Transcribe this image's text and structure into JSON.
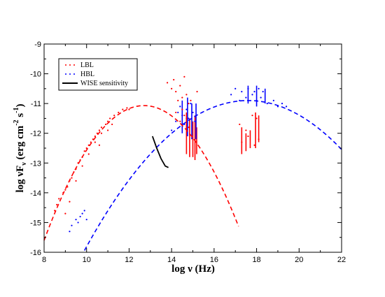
{
  "chart_data": {
    "type": "scatter",
    "xlabel": "log ν (Hz)",
    "ylabel": "log νF_ν (erg cm^-2 s^-1)",
    "xlim": [
      8,
      22
    ],
    "ylim": [
      -16,
      -9
    ],
    "xticks": [
      8,
      10,
      12,
      14,
      16,
      18,
      20,
      22
    ],
    "yticks": [
      -16,
      -15,
      -14,
      -13,
      -12,
      -11,
      -10,
      -9
    ],
    "xtick_labels": [
      "8",
      "10",
      "12",
      "14",
      "16",
      "18",
      "20",
      "22"
    ],
    "ytick_labels": [
      "-16",
      "-15",
      "-14",
      "-13",
      "-12",
      "-11",
      "-10",
      "-9"
    ],
    "grid": false,
    "legend_position": "top-left",
    "legend": [
      {
        "label": "LBL",
        "marker": "dots",
        "color": "#ff0000"
      },
      {
        "label": "HBL",
        "marker": "dots",
        "color": "#0000ff"
      },
      {
        "label": "WISE sensitivity",
        "marker": "line",
        "color": "#000000"
      }
    ],
    "series": [
      {
        "name": "LBL",
        "color": "#ff0000",
        "points": [
          [
            8.5,
            -14.6
          ],
          [
            8.6,
            -14.4
          ],
          [
            8.7,
            -14.2
          ],
          [
            8.9,
            -14.0
          ],
          [
            9.0,
            -13.9
          ],
          [
            9.1,
            -13.8
          ],
          [
            9.2,
            -13.6
          ],
          [
            9.3,
            -13.5
          ],
          [
            9.4,
            -13.3
          ],
          [
            9.5,
            -13.2
          ],
          [
            9.6,
            -13.0
          ],
          [
            9.7,
            -12.9
          ],
          [
            9.8,
            -12.8
          ],
          [
            9.9,
            -12.6
          ],
          [
            10.0,
            -12.5
          ],
          [
            10.1,
            -12.4
          ],
          [
            10.2,
            -12.3
          ],
          [
            10.3,
            -12.2
          ],
          [
            10.4,
            -12.1
          ],
          [
            10.5,
            -12.0
          ],
          [
            10.6,
            -11.9
          ],
          [
            10.7,
            -11.8
          ],
          [
            10.9,
            -11.7
          ],
          [
            11.0,
            -11.6
          ],
          [
            11.1,
            -11.5
          ],
          [
            11.3,
            -11.4
          ],
          [
            11.5,
            -11.3
          ],
          [
            11.7,
            -11.2
          ],
          [
            11.9,
            -11.15
          ],
          [
            12.0,
            -11.2
          ],
          [
            9.0,
            -14.7
          ],
          [
            9.2,
            -14.3
          ],
          [
            9.5,
            -13.6
          ],
          [
            9.8,
            -13.1
          ],
          [
            10.1,
            -12.7
          ],
          [
            10.4,
            -12.3
          ],
          [
            10.6,
            -12.4
          ],
          [
            10.7,
            -12.0
          ],
          [
            11.0,
            -11.9
          ],
          [
            11.2,
            -11.7
          ],
          [
            13.8,
            -10.3
          ],
          [
            14.0,
            -10.5
          ],
          [
            14.1,
            -10.2
          ],
          [
            14.2,
            -10.6
          ],
          [
            14.3,
            -10.9
          ],
          [
            14.4,
            -10.4
          ],
          [
            14.5,
            -10.8
          ],
          [
            14.6,
            -10.1
          ],
          [
            14.7,
            -10.7
          ],
          [
            14.8,
            -11.0
          ],
          [
            14.2,
            -11.3
          ],
          [
            14.4,
            -11.6
          ],
          [
            14.5,
            -11.2
          ],
          [
            14.6,
            -11.4
          ],
          [
            14.7,
            -11.5
          ],
          [
            14.8,
            -11.8
          ],
          [
            14.9,
            -10.9
          ],
          [
            15.0,
            -11.3
          ],
          [
            15.1,
            -11.6
          ],
          [
            15.2,
            -10.6
          ],
          [
            17.2,
            -11.7
          ],
          [
            17.3,
            -12.3
          ],
          [
            17.5,
            -11.9
          ],
          [
            17.6,
            -12.1
          ],
          [
            17.8,
            -11.4
          ],
          [
            17.9,
            -12.4
          ],
          [
            18.0,
            -11.5
          ],
          [
            18.1,
            -12.2
          ]
        ],
        "error_bars": [
          {
            "x": 14.7,
            "y1": -11.3,
            "y2": -12.7
          },
          {
            "x": 14.85,
            "y1": -11.5,
            "y2": -12.8
          },
          {
            "x": 15.0,
            "y1": -11.6,
            "y2": -12.8
          },
          {
            "x": 15.1,
            "y1": -11.4,
            "y2": -12.9
          },
          {
            "x": 15.18,
            "y1": -11.8,
            "y2": -12.7
          },
          {
            "x": 17.3,
            "y1": -11.8,
            "y2": -12.7
          },
          {
            "x": 17.5,
            "y1": -12.0,
            "y2": -12.6
          },
          {
            "x": 17.7,
            "y1": -11.9,
            "y2": -12.5
          },
          {
            "x": 17.95,
            "y1": -11.3,
            "y2": -12.5
          },
          {
            "x": 18.1,
            "y1": -11.4,
            "y2": -12.3
          }
        ]
      },
      {
        "name": "HBL",
        "color": "#0000ff",
        "points": [
          [
            9.2,
            -15.3
          ],
          [
            9.3,
            -15.1
          ],
          [
            9.5,
            -14.9
          ],
          [
            9.7,
            -14.8
          ],
          [
            9.9,
            -14.6
          ],
          [
            10.0,
            -14.9
          ],
          [
            9.6,
            -15.0
          ],
          [
            9.8,
            -14.7
          ],
          [
            14.0,
            -11.9
          ],
          [
            14.2,
            -11.6
          ],
          [
            14.3,
            -11.3
          ],
          [
            14.4,
            -11.1
          ],
          [
            14.5,
            -11.4
          ],
          [
            14.6,
            -11.7
          ],
          [
            14.7,
            -11.2
          ],
          [
            14.8,
            -11.5
          ],
          [
            14.9,
            -11.0
          ],
          [
            15.0,
            -11.3
          ],
          [
            15.1,
            -11.6
          ],
          [
            16.8,
            -10.7
          ],
          [
            17.0,
            -10.5
          ],
          [
            17.2,
            -10.9
          ],
          [
            17.3,
            -10.6
          ],
          [
            17.5,
            -10.8
          ],
          [
            17.6,
            -10.5
          ],
          [
            17.8,
            -10.7
          ],
          [
            17.9,
            -10.6
          ],
          [
            18.0,
            -10.9
          ],
          [
            18.1,
            -10.5
          ],
          [
            18.2,
            -10.8
          ],
          [
            18.3,
            -10.6
          ],
          [
            18.5,
            -11.0
          ],
          [
            18.8,
            -10.9
          ],
          [
            19.0,
            -11.1
          ],
          [
            19.2,
            -11.0
          ],
          [
            19.4,
            -11.1
          ]
        ],
        "error_bars": [
          {
            "x": 14.5,
            "y1": -10.9,
            "y2": -12.0
          },
          {
            "x": 14.75,
            "y1": -10.8,
            "y2": -12.1
          },
          {
            "x": 14.95,
            "y1": -11.0,
            "y2": -12.2
          },
          {
            "x": 15.15,
            "y1": -11.0,
            "y2": -12.2
          },
          {
            "x": 17.6,
            "y1": -10.4,
            "y2": -11.0
          },
          {
            "x": 18.0,
            "y1": -10.4,
            "y2": -11.1
          },
          {
            "x": 18.4,
            "y1": -10.5,
            "y2": -11.0
          }
        ]
      }
    ],
    "curves": [
      {
        "name": "LBL fit",
        "color": "#ff0000",
        "style": "dashed",
        "peak_x": 12.7,
        "peak_y": -11.07,
        "curvature": 0.205,
        "x_range": [
          8.0,
          17.15
        ]
      },
      {
        "name": "HBL fit",
        "color": "#0000ff",
        "style": "dashed",
        "peak_x": 17.6,
        "peak_y": -10.9,
        "curvature": 0.085,
        "x_range": [
          8.5,
          22.0
        ]
      }
    ],
    "wise_sensitivity": [
      [
        13.1,
        -12.1
      ],
      [
        13.3,
        -12.5
      ],
      [
        13.5,
        -12.85
      ],
      [
        13.7,
        -13.1
      ],
      [
        13.85,
        -13.15
      ]
    ]
  }
}
